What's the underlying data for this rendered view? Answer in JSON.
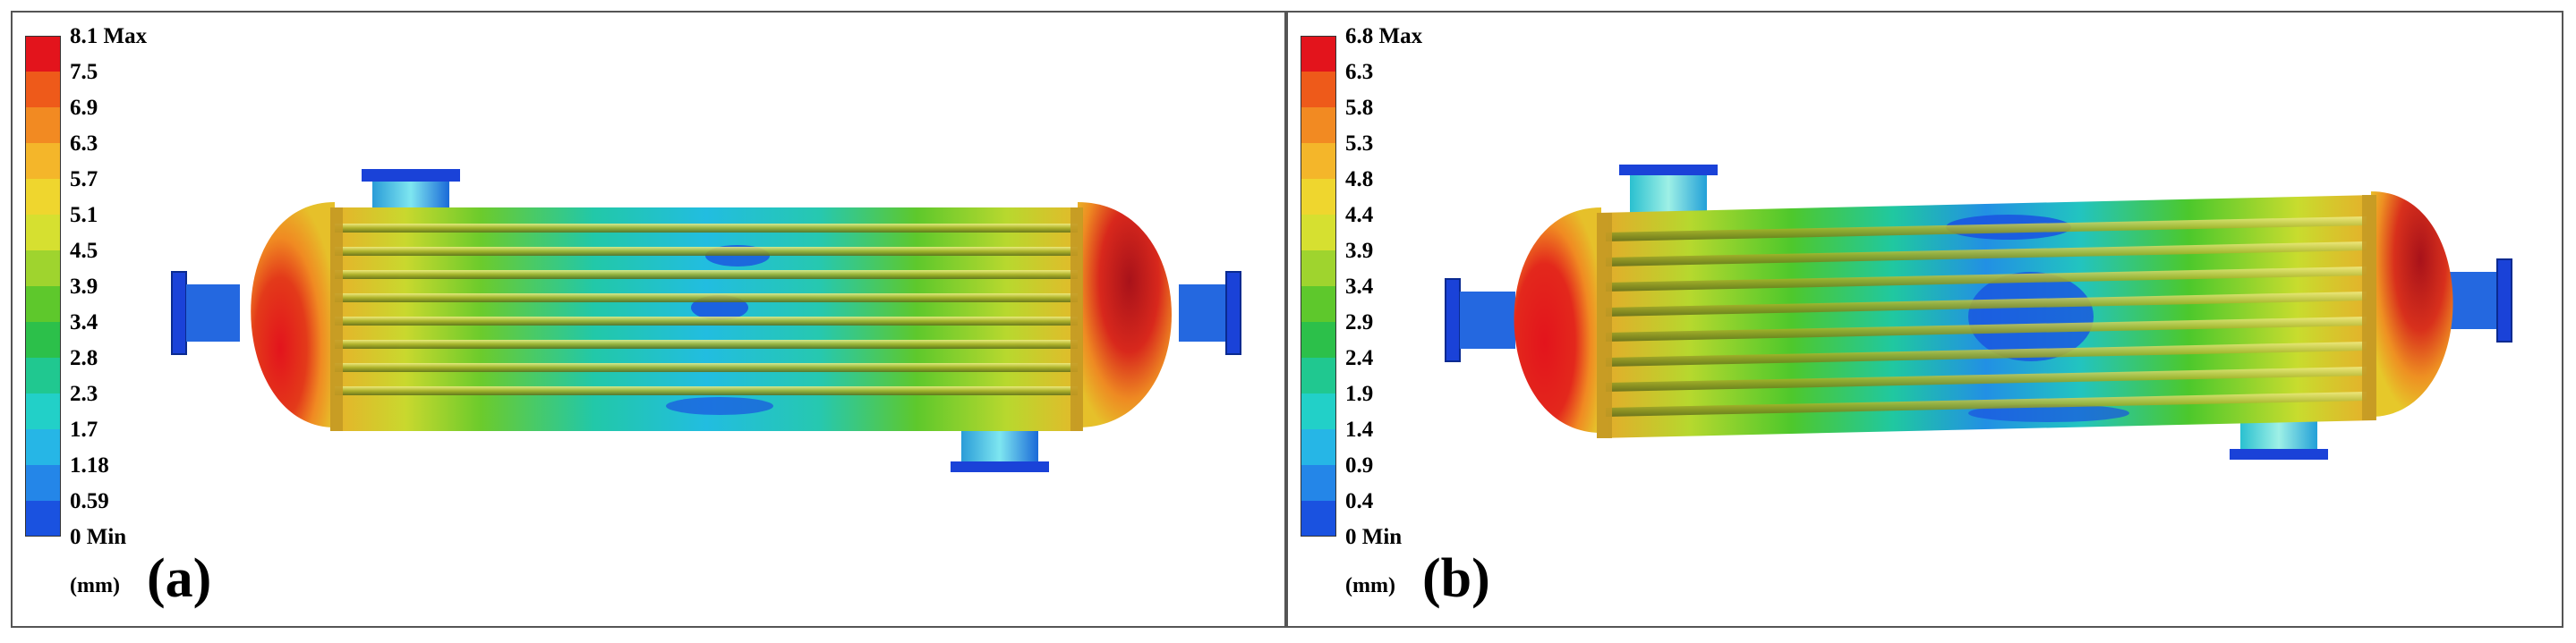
{
  "panels": [
    {
      "label": "(a)",
      "unit": "(mm)",
      "ticks": [
        "8.1 Max",
        "7.5",
        "6.9",
        "6.3",
        "5.7",
        "5.1",
        "4.5",
        "3.9",
        "3.4",
        "2.8",
        "2.3",
        "1.7",
        "1.18",
        "0.59",
        "0 Min"
      ]
    },
    {
      "label": "(b)",
      "unit": "(mm)",
      "ticks": [
        "6.8 Max",
        "6.3",
        "5.8",
        "5.3",
        "4.8",
        "4.4",
        "3.9",
        "3.4",
        "2.9",
        "2.4",
        "1.9",
        "1.4",
        "0.9",
        "0.4",
        "0 Min"
      ]
    }
  ],
  "colormap": [
    "#e3141c",
    "#ee5a1a",
    "#f28a22",
    "#f4b62a",
    "#efd62e",
    "#d6e030",
    "#9fd42e",
    "#5ec82c",
    "#2cc04a",
    "#20c890",
    "#22d0c8",
    "#26b6e6",
    "#2486e8",
    "#1a52e0"
  ]
}
